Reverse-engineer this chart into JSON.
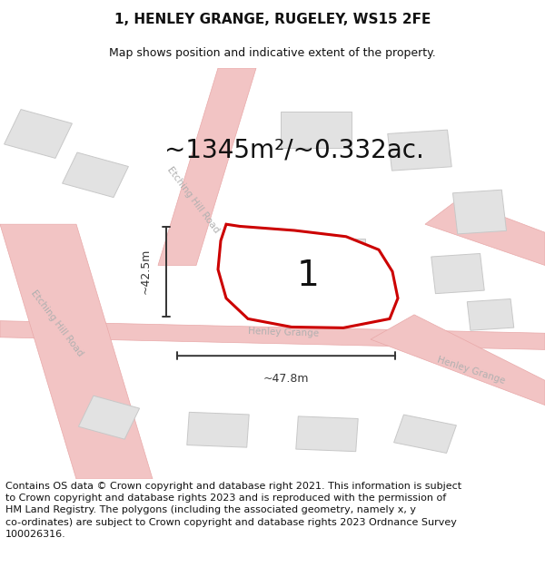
{
  "title": "1, HENLEY GRANGE, RUGELEY, WS15 2FE",
  "subtitle": "Map shows position and indicative extent of the property.",
  "area_text": "~1345m²/~0.332ac.",
  "plot_number": "1",
  "width_label": "~47.8m",
  "height_label": "~42.5m",
  "footnote_line1": "Contains OS data © Crown copyright and database right 2021. This information is subject",
  "footnote_line2": "to Crown copyright and database rights 2023 and is reproduced with the permission of",
  "footnote_line3": "HM Land Registry. The polygons (including the associated geometry, namely x, y",
  "footnote_line4": "co-ordinates) are subject to Crown copyright and database rights 2023 Ordnance Survey",
  "footnote_line5": "100026316.",
  "background_color": "#ffffff",
  "map_bg_color": "#f7f7f7",
  "road_color": "#f2c4c4",
  "road_outline_color": "#e8a8a8",
  "building_color": "#e2e2e2",
  "building_outline": "#c8c8c8",
  "plot_outline_color": "#cc0000",
  "plot_fill_color": "#ffffff",
  "dimension_line_color": "#333333",
  "road_label_color": "#b0b0b0",
  "title_fontsize": 11,
  "subtitle_fontsize": 9,
  "area_fontsize": 20,
  "plot_num_fontsize": 28,
  "dim_fontsize": 9,
  "footnote_fontsize": 8,
  "figsize": [
    6.0,
    6.25
  ],
  "dpi": 100
}
